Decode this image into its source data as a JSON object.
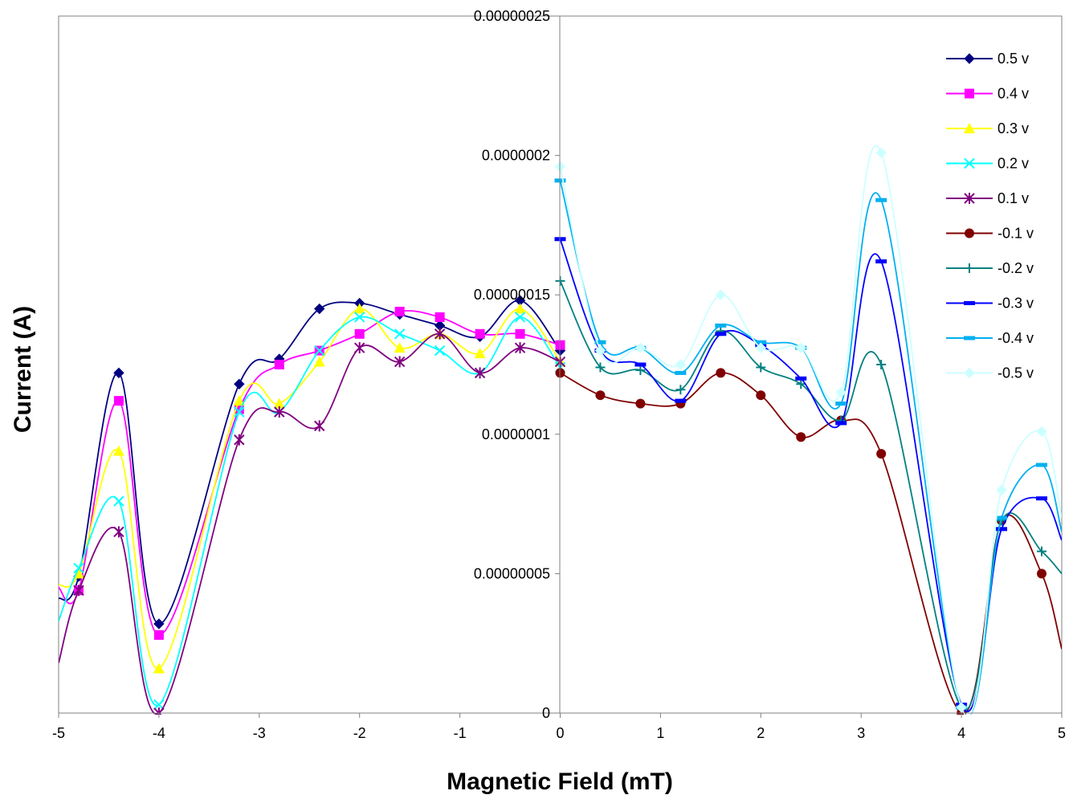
{
  "chart_data": {
    "type": "line",
    "title": "",
    "xlabel": "Magnetic Field (mT)",
    "ylabel": "Current (A)",
    "xlim": [
      -5,
      5
    ],
    "ylim": [
      0,
      2.5e-07
    ],
    "x_ticks": [
      -5,
      -4,
      -3,
      -2,
      -1,
      0,
      1,
      2,
      3,
      4,
      5
    ],
    "x_tick_labels": [
      "-5",
      "-4",
      "-3",
      "-2",
      "-1",
      "0",
      "1",
      "2",
      "3",
      "4",
      "5"
    ],
    "y_ticks": [
      0,
      5e-08,
      1e-07,
      1.5e-07,
      2e-07,
      2.5e-07
    ],
    "y_tick_labels": [
      "0",
      "0.00000005",
      "0.0000001",
      "0.00000015",
      "0.0000002",
      "0.00000025"
    ],
    "grid": false,
    "legend_position": "top-right",
    "series": [
      {
        "name": "0.5 v",
        "color": "#000080",
        "marker": "diamond",
        "x": [
          -5,
          -4.8,
          -4.4,
          -4,
          -3.2,
          -2.8,
          -2.4,
          -2,
          -1.6,
          -1.2,
          -0.8,
          -0.4,
          0
        ],
        "y": [
          4.1e-08,
          4.9e-08,
          1.22e-07,
          3.2e-08,
          1.18e-07,
          1.27e-07,
          1.45e-07,
          1.47e-07,
          1.43e-07,
          1.39e-07,
          1.35e-07,
          1.48e-07,
          1.3e-07
        ]
      },
      {
        "name": "0.4 v",
        "color": "#FF00FF",
        "marker": "square",
        "x": [
          -5,
          -4.8,
          -4.4,
          -4,
          -3.2,
          -2.8,
          -2.4,
          -2,
          -1.6,
          -1.2,
          -0.8,
          -0.4,
          0
        ],
        "y": [
          4.5e-08,
          4.4e-08,
          1.12e-07,
          2.8e-08,
          1.09e-07,
          1.25e-07,
          1.3e-07,
          1.36e-07,
          1.44e-07,
          1.42e-07,
          1.36e-07,
          1.36e-07,
          1.32e-07
        ]
      },
      {
        "name": "0.3 v",
        "color": "#FFFF00",
        "marker": "triangle",
        "x": [
          -5,
          -4.8,
          -4.4,
          -4,
          -3.2,
          -2.8,
          -2.4,
          -2,
          -1.6,
          -1.2,
          -0.8,
          -0.4,
          0
        ],
        "y": [
          4.6e-08,
          5e-08,
          9.4e-08,
          1.6e-08,
          1.12e-07,
          1.11e-07,
          1.26e-07,
          1.45e-07,
          1.31e-07,
          1.36e-07,
          1.29e-07,
          1.45e-07,
          1.26e-07
        ]
      },
      {
        "name": "0.2 v",
        "color": "#00FFFF",
        "marker": "x",
        "x": [
          -5,
          -4.8,
          -4.4,
          -4,
          -3.2,
          -2.8,
          -2.4,
          -2,
          -1.6,
          -1.2,
          -0.8,
          -0.4,
          0
        ],
        "y": [
          3.3e-08,
          5.2e-08,
          7.6e-08,
          3e-09,
          1.08e-07,
          1.08e-07,
          1.3e-07,
          1.42e-07,
          1.36e-07,
          1.3e-07,
          1.22e-07,
          1.42e-07,
          1.24e-07
        ]
      },
      {
        "name": "0.1 v",
        "color": "#800080",
        "marker": "star",
        "x": [
          -5,
          -4.8,
          -4.4,
          -4,
          -3.2,
          -2.8,
          -2.4,
          -2,
          -1.6,
          -1.2,
          -0.8,
          -0.4,
          0
        ],
        "y": [
          1.8e-08,
          4.4e-08,
          6.5e-08,
          0,
          9.8e-08,
          1.08e-07,
          1.03e-07,
          1.31e-07,
          1.26e-07,
          1.36e-07,
          1.22e-07,
          1.31e-07,
          1.26e-07
        ]
      },
      {
        "name": "-0.1 v",
        "color": "#800000",
        "marker": "circle",
        "x": [
          0,
          0.4,
          0.8,
          1.2,
          1.6,
          2,
          2.4,
          2.8,
          3.2,
          4,
          4.4,
          4.8,
          5
        ],
        "y": [
          1.22e-07,
          1.14e-07,
          1.11e-07,
          1.11e-07,
          1.22e-07,
          1.14e-07,
          9.9e-08,
          1.05e-07,
          9.3e-08,
          0,
          6.9e-08,
          5e-08,
          2.3e-08
        ]
      },
      {
        "name": "-0.2 v",
        "color": "#008080",
        "marker": "plus",
        "x": [
          0,
          0.4,
          0.8,
          1.2,
          1.6,
          2,
          2.4,
          2.8,
          3.2,
          4,
          4.4,
          4.8,
          5
        ],
        "y": [
          1.55e-07,
          1.24e-07,
          1.23e-07,
          1.16e-07,
          1.37e-07,
          1.24e-07,
          1.18e-07,
          1.05e-07,
          1.25e-07,
          2e-09,
          6.9e-08,
          5.8e-08,
          5e-08
        ]
      },
      {
        "name": "-0.3 v",
        "color": "#0000FF",
        "marker": "dash",
        "x": [
          0,
          0.4,
          0.8,
          1.2,
          1.6,
          2,
          2.4,
          2.8,
          3.2,
          4,
          4.4,
          4.8,
          5
        ],
        "y": [
          1.7e-07,
          1.3e-07,
          1.25e-07,
          1.12e-07,
          1.36e-07,
          1.32e-07,
          1.2e-07,
          1.04e-07,
          1.62e-07,
          3e-09,
          6.6e-08,
          7.7e-08,
          6.2e-08
        ]
      },
      {
        "name": "-0.4 v",
        "color": "#00B0F0",
        "marker": "dash",
        "x": [
          0,
          0.4,
          0.8,
          1.2,
          1.6,
          2,
          2.4,
          2.8,
          3.2,
          4,
          4.4,
          4.8,
          5
        ],
        "y": [
          1.91e-07,
          1.33e-07,
          1.31e-07,
          1.22e-07,
          1.39e-07,
          1.33e-07,
          1.31e-07,
          1.11e-07,
          1.84e-07,
          2e-09,
          7e-08,
          8.9e-08,
          6.5e-08
        ]
      },
      {
        "name": "-0.5 v",
        "color": "#CCFFFF",
        "marker": "diamond",
        "x": [
          0,
          0.4,
          0.8,
          1.2,
          1.6,
          2,
          2.4,
          2.8,
          3.2,
          4,
          4.4,
          4.8,
          5
        ],
        "y": [
          1.96e-07,
          1.3e-07,
          1.31e-07,
          1.25e-07,
          1.5e-07,
          1.31e-07,
          1.31e-07,
          1.15e-07,
          2.01e-07,
          2e-09,
          8e-08,
          1.01e-07,
          7e-08
        ]
      }
    ]
  }
}
